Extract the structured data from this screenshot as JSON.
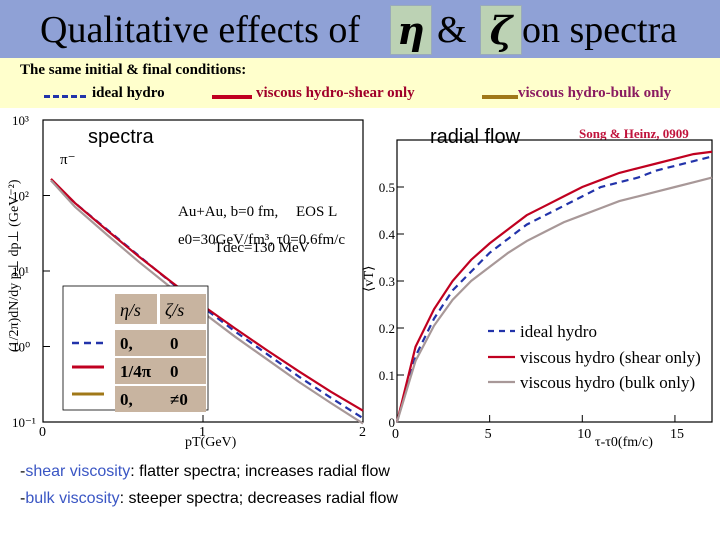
{
  "title": {
    "prefix": "Qualitative effects of",
    "eta": "η",
    "amp": "&",
    "zeta": "ζ",
    "suffix": "on spectra"
  },
  "subtitle": "The same initial & final conditions:",
  "legend_top": [
    {
      "label": "ideal hydro",
      "color": "#2233aa",
      "color_text": "#000000",
      "style": "dashed"
    },
    {
      "label": "viscous hydro-shear only",
      "color": "#c00020",
      "color_text": "#a0002a",
      "style": "solid"
    },
    {
      "label": "viscous hydro-bulk only",
      "color": "#a07818",
      "color_text": "#8a1a60",
      "style": "solid"
    }
  ],
  "credit": "Song & Heinz, 0909",
  "captions": [
    {
      "prefix": "-",
      "highlight": "shear viscosity",
      "rest": ": flatter spectra; increases radial flow"
    },
    {
      "prefix": "-",
      "highlight": "bulk viscosity",
      "rest": ": steeper spectra; decreases radial flow"
    }
  ],
  "chart_data": [
    {
      "type": "line",
      "panel_label": "spectra",
      "xlabel": "pT(GeV)",
      "ylabel": "(1/2π)dN/dy p⊥ dp⊥ (GeV⁻²)",
      "xlim": [
        0,
        2
      ],
      "ylim_log10": [
        -1,
        3
      ],
      "x_ticks": [
        "0",
        "1",
        "2"
      ],
      "y_ticks": [
        "10⁻¹",
        "10⁰",
        "10¹",
        "10²",
        "10³"
      ],
      "particle": "π⁻",
      "annotations": [
        "Au+Au, b=0 fm,",
        "EOS L",
        "e0=30GeV/fm³, τ0=0.6fm/c",
        "Tdec=130 MeV"
      ],
      "inset": {
        "headers": [
          "η/s",
          "ζ/s"
        ],
        "rows": [
          {
            "values": [
              "0,",
              "0"
            ],
            "color": "#2233aa",
            "style": "dashed"
          },
          {
            "values": [
              "1/4π",
              "0"
            ],
            "color": "#c00020",
            "style": "solid"
          },
          {
            "values": [
              "0,",
              "≠0"
            ],
            "color": "#a07818",
            "style": "solid"
          }
        ]
      },
      "x": [
        0.05,
        0.2,
        0.4,
        0.6,
        0.8,
        1.0,
        1.2,
        1.4,
        1.6,
        1.8,
        2.0
      ],
      "series": [
        {
          "name": "ideal hydro",
          "color": "#2233aa",
          "style": "dashed",
          "log10_values": [
            2.2,
            1.9,
            1.55,
            1.2,
            0.85,
            0.52,
            0.2,
            -0.1,
            -0.4,
            -0.68,
            -0.95
          ]
        },
        {
          "name": "viscous hydro (shear only)",
          "color": "#c00020",
          "style": "solid",
          "log10_values": [
            2.22,
            1.9,
            1.54,
            1.19,
            0.86,
            0.54,
            0.24,
            -0.05,
            -0.33,
            -0.6,
            -0.85
          ]
        },
        {
          "name": "viscous hydro (bulk only)",
          "color": "#a89898",
          "style": "solid",
          "log10_values": [
            2.2,
            1.85,
            1.48,
            1.12,
            0.78,
            0.45,
            0.13,
            -0.17,
            -0.47,
            -0.75,
            -1.02
          ]
        }
      ]
    },
    {
      "type": "line",
      "panel_label": "radial flow",
      "xlabel": "τ-τ0(fm/c)",
      "ylabel": "⟨vT⟩",
      "xlim": [
        0,
        17
      ],
      "ylim": [
        0,
        0.6
      ],
      "x_ticks": [
        0,
        5,
        10,
        15
      ],
      "y_ticks": [
        0,
        0.1,
        0.2,
        0.3,
        0.4,
        0.5
      ],
      "x": [
        0,
        1,
        2,
        3,
        4,
        5,
        6,
        7,
        8,
        9,
        10,
        11,
        12,
        13,
        14,
        15,
        16,
        17
      ],
      "series": [
        {
          "name": "ideal hydro",
          "color": "#2233aa",
          "style": "dashed",
          "values": [
            0,
            0.14,
            0.22,
            0.28,
            0.32,
            0.36,
            0.39,
            0.42,
            0.44,
            0.46,
            0.48,
            0.5,
            0.51,
            0.52,
            0.535,
            0.545,
            0.555,
            0.565
          ]
        },
        {
          "name": "viscous hydro (shear only)",
          "color": "#c00020",
          "style": "solid",
          "values": [
            0,
            0.16,
            0.24,
            0.3,
            0.345,
            0.38,
            0.41,
            0.44,
            0.46,
            0.48,
            0.5,
            0.515,
            0.53,
            0.54,
            0.55,
            0.56,
            0.57,
            0.575
          ]
        },
        {
          "name": "viscous hydro (bulk only)",
          "color": "#a89898",
          "style": "solid",
          "values": [
            0,
            0.13,
            0.205,
            0.26,
            0.3,
            0.33,
            0.36,
            0.385,
            0.405,
            0.425,
            0.44,
            0.455,
            0.47,
            0.48,
            0.49,
            0.5,
            0.51,
            0.52
          ]
        }
      ]
    }
  ]
}
